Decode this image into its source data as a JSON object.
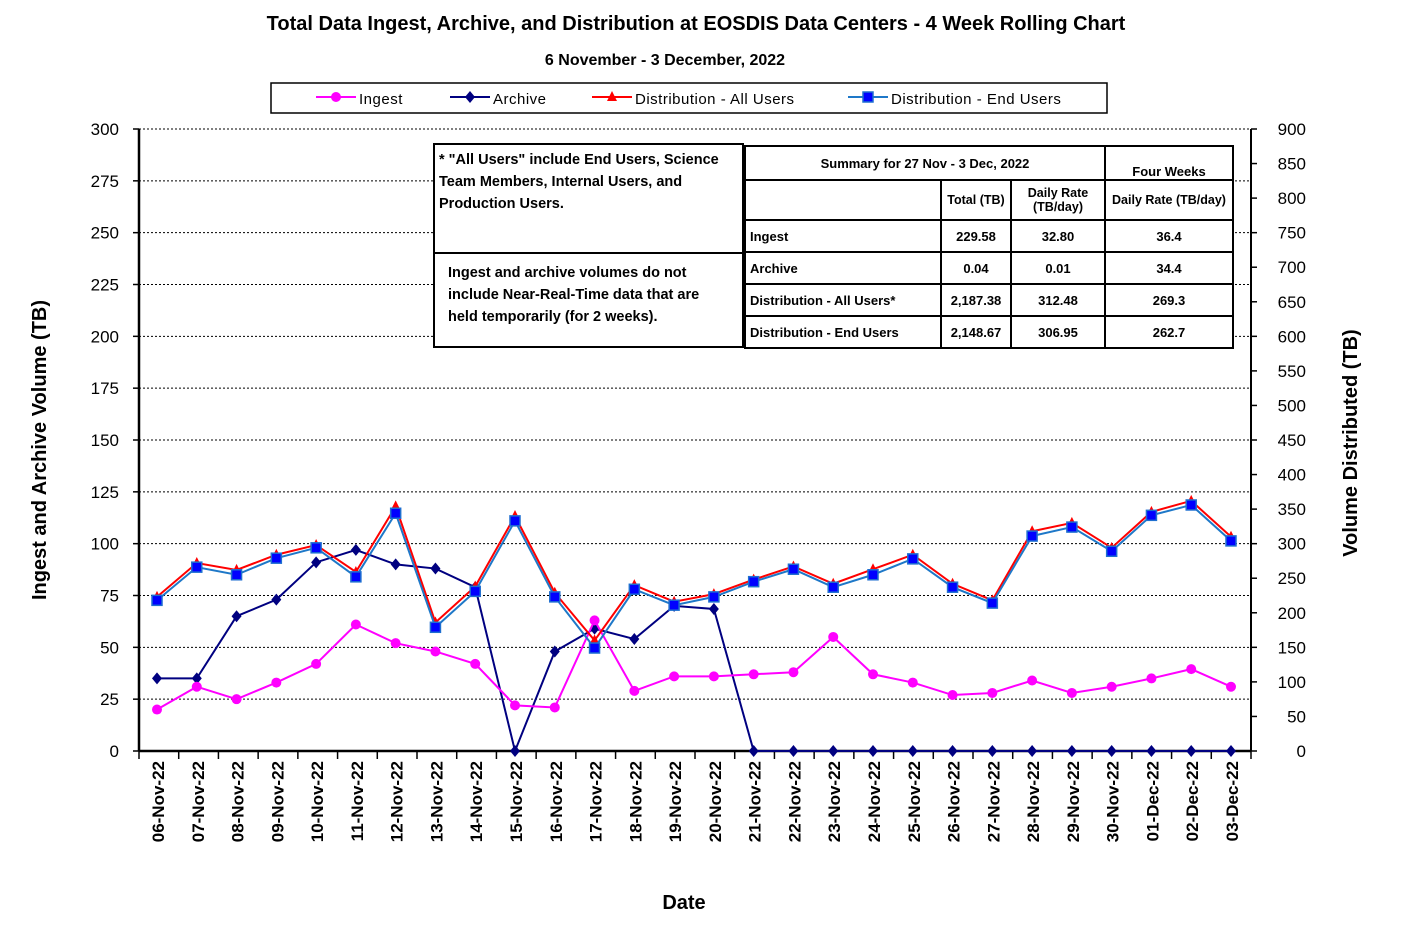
{
  "chart_data": {
    "type": "line",
    "title": "Total Data Ingest, Archive, and  Distribution at EOSDIS Data Centers - 4 Week Rolling Chart",
    "subtitle": "6  November   -  3  December,  2022",
    "xlabel": "Date",
    "ylabel": "Ingest and Archive Volume (TB)",
    "y2label": "Volume Distributed (TB)",
    "ylim": [
      0,
      300
    ],
    "y2lim": [
      0,
      900
    ],
    "yticks": [
      0,
      25,
      50,
      75,
      100,
      125,
      150,
      175,
      200,
      225,
      250,
      275,
      300
    ],
    "y2ticks": [
      0,
      50,
      100,
      150,
      200,
      250,
      300,
      350,
      400,
      450,
      500,
      550,
      600,
      650,
      700,
      750,
      800,
      850,
      900
    ],
    "grid": true,
    "legend_position": "top-center",
    "categories": [
      "06-Nov-22",
      "07-Nov-22",
      "08-Nov-22",
      "09-Nov-22",
      "10-Nov-22",
      "11-Nov-22",
      "12-Nov-22",
      "13-Nov-22",
      "14-Nov-22",
      "15-Nov-22",
      "16-Nov-22",
      "17-Nov-22",
      "18-Nov-22",
      "19-Nov-22",
      "20-Nov-22",
      "21-Nov-22",
      "22-Nov-22",
      "23-Nov-22",
      "24-Nov-22",
      "25-Nov-22",
      "26-Nov-22",
      "27-Nov-22",
      "28-Nov-22",
      "29-Nov-22",
      "30-Nov-22",
      "01-Dec-22",
      "02-Dec-22",
      "03-Dec-22"
    ],
    "series": [
      {
        "name": "Ingest",
        "axis": "left",
        "color": "#ff00ff",
        "marker": "circle",
        "values": [
          20,
          31,
          25,
          33,
          42,
          61,
          52,
          48,
          42,
          22,
          21,
          63,
          29,
          36,
          36,
          37,
          38,
          55,
          37,
          33,
          27,
          28,
          34,
          28,
          31,
          35,
          39.5,
          31
        ]
      },
      {
        "name": "Archive",
        "axis": "left",
        "color": "#000080",
        "marker": "diamond",
        "values": [
          35,
          35,
          65,
          73,
          91,
          97,
          90,
          88,
          79,
          0,
          48,
          59,
          54,
          70,
          68.5,
          0,
          0,
          0,
          0,
          0,
          0,
          0,
          0,
          0,
          0,
          0,
          0,
          0
        ]
      },
      {
        "name": "Distribution - All Users",
        "axis": "right",
        "color": "#ff0000",
        "marker": "triangle",
        "values": [
          223,
          272,
          262,
          284,
          298,
          259,
          354,
          186,
          238,
          340,
          229,
          160,
          240,
          216,
          227,
          248,
          267,
          242,
          263,
          284,
          242,
          218,
          318,
          330,
          294,
          346,
          362,
          310
        ]
      },
      {
        "name": "Distribution - End Users",
        "axis": "right",
        "color": "#0000ff",
        "marker": "square",
        "values": [
          218,
          266,
          255,
          279,
          294,
          252,
          344,
          179,
          231,
          333,
          223,
          149,
          234,
          211,
          223,
          245,
          263,
          237,
          255,
          278,
          237,
          214,
          311,
          324,
          289,
          341,
          356,
          304
        ]
      }
    ]
  },
  "notes": {
    "all_users": "* \"All Users\" include End Users, Science Team Members,  Internal Users, and Production Users.",
    "nrt": "Ingest and archive volumes do not include Near-Real-Time data that are held temporarily (for 2 weeks)."
  },
  "summary": {
    "header": "Summary  for  27  Nov   -  3  Dec,  2022",
    "four_weeks": "Four Weeks",
    "col_total": "Total (TB)",
    "col_daily": "Daily Rate (TB/day)",
    "col_fw_daily": "Daily Rate (TB/day)",
    "rows": [
      {
        "label": "Ingest",
        "total": "229.58",
        "daily": "32.80",
        "fw": "36.4"
      },
      {
        "label": "Archive",
        "total": "0.04",
        "daily": "0.01",
        "fw": "34.4"
      },
      {
        "label": "Distribution - All Users*",
        "total": "2,187.38",
        "daily": "312.48",
        "fw": "269.3"
      },
      {
        "label": "Distribution - End Users",
        "total": "2,148.67",
        "daily": "306.95",
        "fw": "262.7"
      }
    ]
  }
}
